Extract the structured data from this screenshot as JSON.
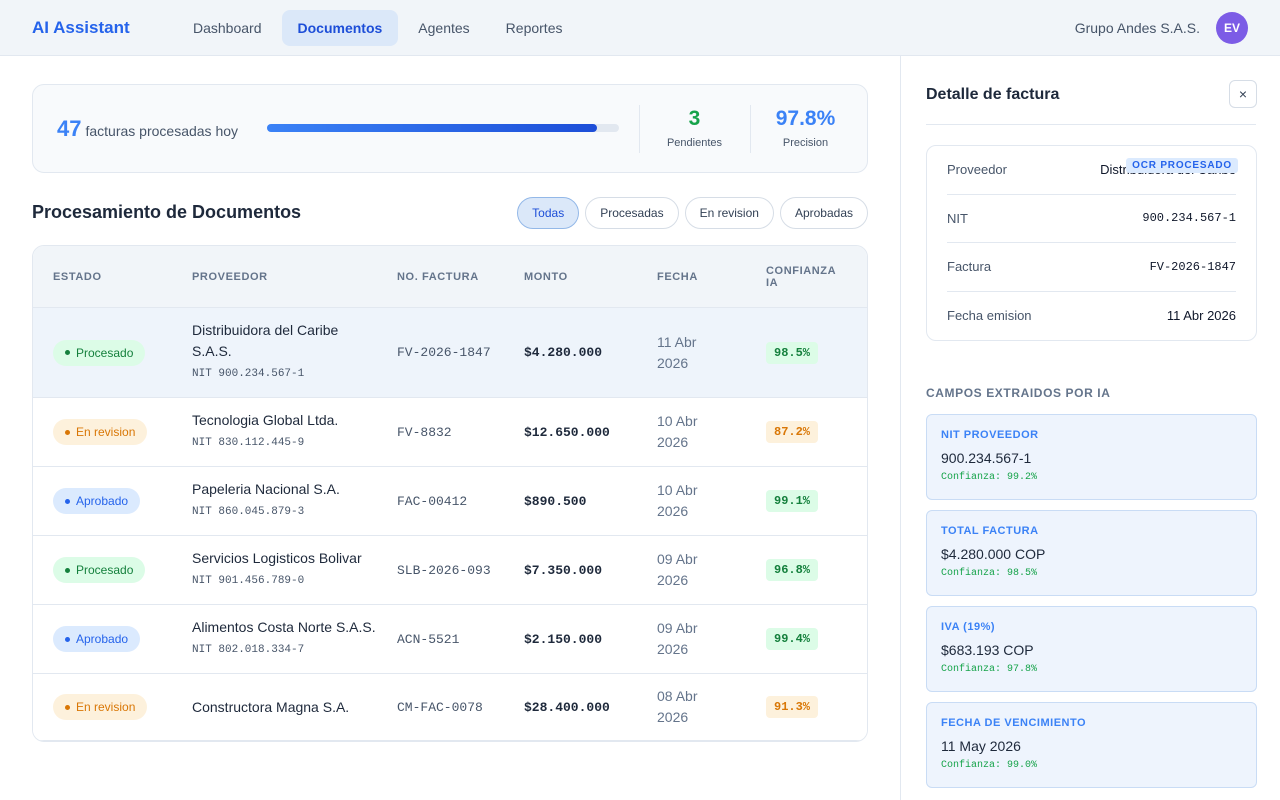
{
  "header": {
    "brand": "AI Assistant",
    "nav": [
      {
        "label": "Dashboard",
        "active": false
      },
      {
        "label": "Documentos",
        "active": true
      },
      {
        "label": "Agentes",
        "active": false
      },
      {
        "label": "Reportes",
        "active": false
      }
    ],
    "company": "Grupo Andes S.A.S.",
    "avatar": "EV"
  },
  "summary": {
    "count": "47",
    "count_label": "facturas procesadas hoy",
    "stats": [
      {
        "value": "3",
        "label": "Pendientes",
        "color": "#16a34a"
      },
      {
        "value": "97.8%",
        "label": "Precision",
        "color": "#3b82f6"
      }
    ]
  },
  "section_title": "Procesamiento de Documentos",
  "filters": [
    {
      "label": "Todas",
      "active": true
    },
    {
      "label": "Procesadas",
      "active": false
    },
    {
      "label": "En revision",
      "active": false
    },
    {
      "label": "Aprobadas",
      "active": false
    }
  ],
  "table": {
    "columns": [
      "ESTADO",
      "PROVEEDOR",
      "NO. FACTURA",
      "MONTO",
      "FECHA",
      "CONFIANZA IA"
    ],
    "rows": [
      {
        "status": "Procesado",
        "status_tone": "green",
        "provider": "Distribuidora del Caribe S.A.S.",
        "nit": "NIT 900.234.567-1",
        "invoice": "FV-2026-1847",
        "amount": "$4.280.000",
        "date": "11 Abr 2026",
        "confidence": "98.5%",
        "confidence_tone": "green",
        "selected": true
      },
      {
        "status": "En revision",
        "status_tone": "amber",
        "provider": "Tecnologia Global Ltda.",
        "nit": "NIT 830.112.445-9",
        "invoice": "FV-8832",
        "amount": "$12.650.000",
        "date": "10 Abr 2026",
        "confidence": "87.2%",
        "confidence_tone": "amber",
        "selected": false
      },
      {
        "status": "Aprobado",
        "status_tone": "blue",
        "provider": "Papeleria Nacional S.A.",
        "nit": "NIT 860.045.879-3",
        "invoice": "FAC-00412",
        "amount": "$890.500",
        "date": "10 Abr 2026",
        "confidence": "99.1%",
        "confidence_tone": "green",
        "selected": false
      },
      {
        "status": "Procesado",
        "status_tone": "green",
        "provider": "Servicios Logisticos Bolivar",
        "nit": "NIT 901.456.789-0",
        "invoice": "SLB-2026-093",
        "amount": "$7.350.000",
        "date": "09 Abr 2026",
        "confidence": "96.8%",
        "confidence_tone": "green",
        "selected": false
      },
      {
        "status": "Aprobado",
        "status_tone": "blue",
        "provider": "Alimentos Costa Norte S.A.S.",
        "nit": "NIT 802.018.334-7",
        "invoice": "ACN-5521",
        "amount": "$2.150.000",
        "date": "09 Abr 2026",
        "confidence": "99.4%",
        "confidence_tone": "green",
        "selected": false
      },
      {
        "status": "En revision",
        "status_tone": "amber",
        "provider": "Constructora Magna S.A.",
        "invoice": "CM-FAC-0078",
        "amount": "$28.400.000",
        "date": "08 Abr 2026",
        "confidence": "91.3%",
        "confidence_tone": "amber",
        "selected": false
      }
    ]
  },
  "detail": {
    "title": "Detalle de factura",
    "close": "×",
    "badge": "OCR PROCESADO",
    "fields": [
      {
        "label": "Proveedor",
        "value": "Distribuidora del Caribe",
        "mono": false
      },
      {
        "label": "NIT",
        "value": "900.234.567-1",
        "mono": true
      },
      {
        "label": "Factura",
        "value": "FV-2026-1847",
        "mono": true
      },
      {
        "label": "Fecha emision",
        "value": "11 Abr 2026",
        "mono": false
      }
    ],
    "extracted_title": "CAMPOS EXTRAIDOS POR IA",
    "extracted": [
      {
        "label": "NIT PROVEEDOR",
        "value": "900.234.567-1",
        "confidence": "Confianza: 99.2%"
      },
      {
        "label": "TOTAL FACTURA",
        "value": "$4.280.000 COP",
        "confidence": "Confianza: 98.5%"
      },
      {
        "label": "IVA (19%)",
        "value": "$683.193 COP",
        "confidence": "Confianza: 97.8%"
      },
      {
        "label": "FECHA DE VENCIMIENTO",
        "value": "11 May 2026",
        "confidence": "Confianza: 99.0%"
      }
    ]
  }
}
